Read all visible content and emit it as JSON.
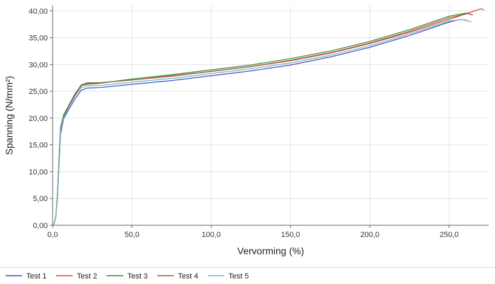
{
  "chart_data": {
    "type": "line",
    "title": "",
    "xlabel": "Vervorming (%)",
    "ylabel": "Spanning (N/mm²)",
    "xlim": [
      0,
      275
    ],
    "ylim": [
      0,
      41
    ],
    "x_ticks": [
      {
        "value": 0,
        "label": "0,0"
      },
      {
        "value": 50,
        "label": "50,0"
      },
      {
        "value": 100,
        "label": "100,0"
      },
      {
        "value": 150,
        "label": "150,0"
      },
      {
        "value": 200,
        "label": "200,0"
      },
      {
        "value": 250,
        "label": "250,0"
      }
    ],
    "y_ticks": [
      {
        "value": 0,
        "label": "0,00"
      },
      {
        "value": 5,
        "label": "5,00"
      },
      {
        "value": 10,
        "label": "10,00"
      },
      {
        "value": 15,
        "label": "15,00"
      },
      {
        "value": 20,
        "label": "20,00"
      },
      {
        "value": 25,
        "label": "25,00"
      },
      {
        "value": 30,
        "label": "30,00"
      },
      {
        "value": 35,
        "label": "35,00"
      },
      {
        "value": 40,
        "label": "40,00"
      }
    ],
    "grid": true,
    "legend_position": "bottom",
    "series": [
      {
        "name": "Test 1",
        "color": "#3a4fd6",
        "x": [
          0,
          1,
          2,
          3,
          4,
          5,
          7,
          10,
          14,
          18,
          22,
          30,
          50,
          75,
          100,
          125,
          150,
          175,
          200,
          225,
          250,
          257,
          260,
          262
        ],
        "y": [
          0,
          0.3,
          1.5,
          5,
          11,
          17,
          19.9,
          21.5,
          23.5,
          25.2,
          25.6,
          25.7,
          26.3,
          27,
          27.9,
          28.8,
          29.9,
          31.4,
          33.2,
          35.4,
          37.9,
          38.4,
          38.3,
          38.1
        ]
      },
      {
        "name": "Test 2",
        "color": "#e0433a",
        "x": [
          0,
          1,
          2,
          3,
          4,
          5,
          7,
          10,
          14,
          18,
          22,
          30,
          50,
          75,
          100,
          125,
          150,
          175,
          200,
          225,
          250,
          265,
          270,
          272
        ],
        "y": [
          0,
          0.3,
          1.6,
          5.5,
          12,
          18,
          20.3,
          22,
          24.3,
          26,
          26.5,
          26.6,
          27.1,
          27.8,
          28.7,
          29.6,
          30.7,
          32.1,
          33.9,
          36,
          38.4,
          39.9,
          40.4,
          40.2
        ]
      },
      {
        "name": "Test 3",
        "color": "#2f8a2f",
        "x": [
          0,
          1,
          2,
          3,
          4,
          5,
          7,
          10,
          14,
          18,
          22,
          30,
          50,
          75,
          100,
          125,
          150,
          175,
          200,
          225,
          250,
          261,
          264
        ],
        "y": [
          0,
          0.3,
          1.7,
          5.8,
          12.5,
          18.3,
          20.6,
          22.3,
          24.5,
          26.1,
          26.3,
          26.5,
          27.3,
          28.1,
          29,
          29.9,
          31.1,
          32.5,
          34.3,
          36.5,
          39,
          39.6,
          39.3
        ]
      },
      {
        "name": "Test 4",
        "color": "#9a5a3a",
        "x": [
          0,
          1,
          2,
          3,
          4,
          5,
          7,
          10,
          14,
          18,
          22,
          30,
          50,
          75,
          100,
          125,
          150,
          175,
          200,
          225,
          250,
          262,
          265
        ],
        "y": [
          0,
          0.3,
          1.6,
          5.6,
          12.2,
          18.1,
          20.4,
          22.2,
          24.4,
          26.2,
          26.6,
          26.6,
          27.1,
          27.9,
          28.7,
          29.6,
          30.8,
          32.2,
          34,
          36.2,
          38.7,
          39.5,
          39.2
        ]
      },
      {
        "name": "Test 5",
        "color": "#6fb5bd",
        "x": [
          0,
          1,
          2,
          3,
          4,
          5,
          7,
          10,
          14,
          18,
          22,
          30,
          50,
          75,
          100,
          125,
          150,
          175,
          200,
          225,
          250,
          258,
          262,
          264
        ],
        "y": [
          0,
          0.3,
          1.6,
          5.3,
          11.7,
          17.6,
          20.1,
          21.9,
          24,
          25.7,
          26,
          26.1,
          26.7,
          27.4,
          28.3,
          29.2,
          30.3,
          31.7,
          33.5,
          35.7,
          38.1,
          38.4,
          38.1,
          37.9
        ]
      }
    ]
  }
}
